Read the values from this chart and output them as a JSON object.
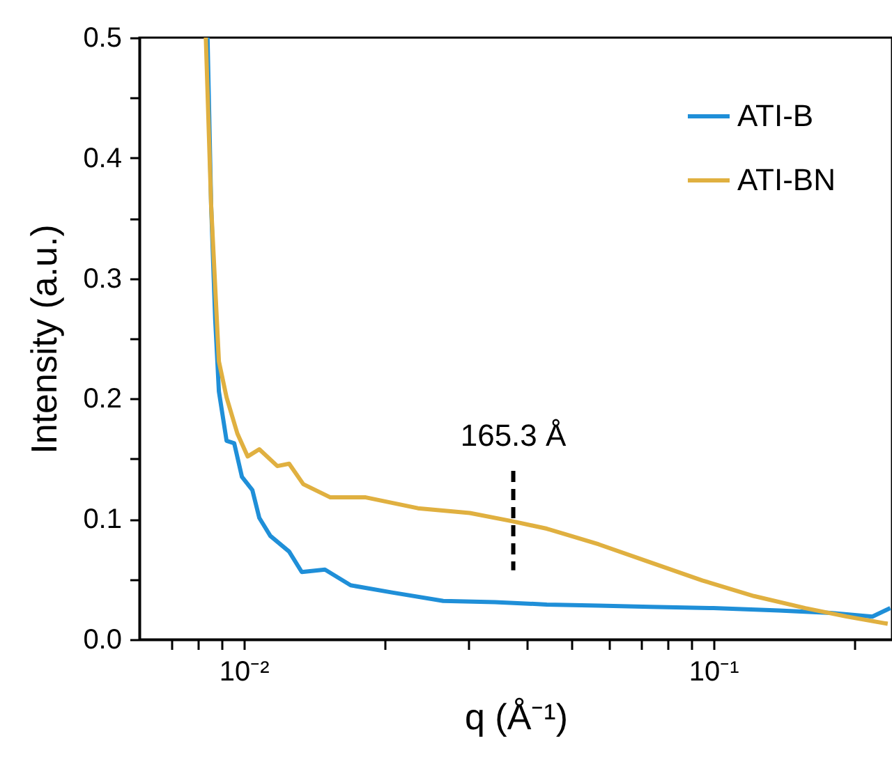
{
  "chart_data": {
    "type": "line",
    "xlabel": "q (Å⁻¹)",
    "ylabel": "Intensity (a.u.)",
    "log": "x",
    "xlim": [
      0.006,
      0.24
    ],
    "ylim": [
      0,
      0.5
    ],
    "xticks": [
      {
        "value": 0.007,
        "label": null
      },
      {
        "value": 0.008,
        "label": null
      },
      {
        "value": 0.009,
        "label": null
      },
      {
        "value": 0.01,
        "label": "10⁻²"
      },
      {
        "value": 0.02,
        "label": null
      },
      {
        "value": 0.03,
        "label": null
      },
      {
        "value": 0.04,
        "label": null
      },
      {
        "value": 0.05,
        "label": null
      },
      {
        "value": 0.06,
        "label": null
      },
      {
        "value": 0.07,
        "label": null
      },
      {
        "value": 0.08,
        "label": null
      },
      {
        "value": 0.09,
        "label": null
      },
      {
        "value": 0.1,
        "label": "10⁻¹"
      },
      {
        "value": 0.2,
        "label": null
      }
    ],
    "yticks": [
      {
        "value": 0,
        "label": "0.0"
      },
      {
        "value": 0.05,
        "label": null
      },
      0.1,
      {
        "value": 0.15,
        "label": null
      },
      0.2,
      {
        "value": 0.25,
        "label": null
      },
      0.3,
      {
        "value": 0.35,
        "label": null
      },
      0.4,
      {
        "value": 0.45,
        "label": null
      },
      0.5
    ],
    "legend": "top right",
    "grid": false,
    "marker": "none",
    "line_style": "solid",
    "series": [
      {
        "name": "ATI-B",
        "color": "#1f8fd8",
        "x": [
          0.00838,
          0.00853,
          0.0087,
          0.00886,
          0.0092,
          0.00955,
          0.00992,
          0.01044,
          0.0108,
          0.0114,
          0.0125,
          0.0133,
          0.0149,
          0.0169,
          0.0207,
          0.0266,
          0.0343,
          0.0442,
          0.057,
          0.0734,
          0.1,
          0.138,
          0.178,
          0.218,
          0.238
        ],
        "values": [
          0.5,
          0.36,
          0.266,
          0.206,
          0.165,
          0.163,
          0.135,
          0.124,
          0.101,
          0.086,
          0.073,
          0.056,
          0.058,
          0.045,
          0.039,
          0.032,
          0.031,
          0.029,
          0.028,
          0.027,
          0.026,
          0.024,
          0.022,
          0.019,
          0.026
        ]
      },
      {
        "name": "ATI-BN",
        "color": "#e0b040",
        "x": [
          0.00831,
          0.00853,
          0.00886,
          0.0092,
          0.0097,
          0.0102,
          0.0108,
          0.0118,
          0.0125,
          0.0134,
          0.0153,
          0.0182,
          0.0235,
          0.0303,
          0.0375,
          0.0442,
          0.057,
          0.0734,
          0.0947,
          0.122,
          0.157,
          0.192,
          0.235
        ],
        "values": [
          0.5,
          0.36,
          0.231,
          0.201,
          0.171,
          0.152,
          0.158,
          0.144,
          0.146,
          0.129,
          0.118,
          0.118,
          0.109,
          0.105,
          0.098,
          0.092,
          0.079,
          0.064,
          0.049,
          0.036,
          0.026,
          0.019,
          0.013
        ]
      }
    ],
    "ref_lines": [
      {
        "axis": "x",
        "value": 0.0375,
        "label": "165.3 Å",
        "color": "#000000",
        "line_style": "dashed"
      }
    ]
  }
}
